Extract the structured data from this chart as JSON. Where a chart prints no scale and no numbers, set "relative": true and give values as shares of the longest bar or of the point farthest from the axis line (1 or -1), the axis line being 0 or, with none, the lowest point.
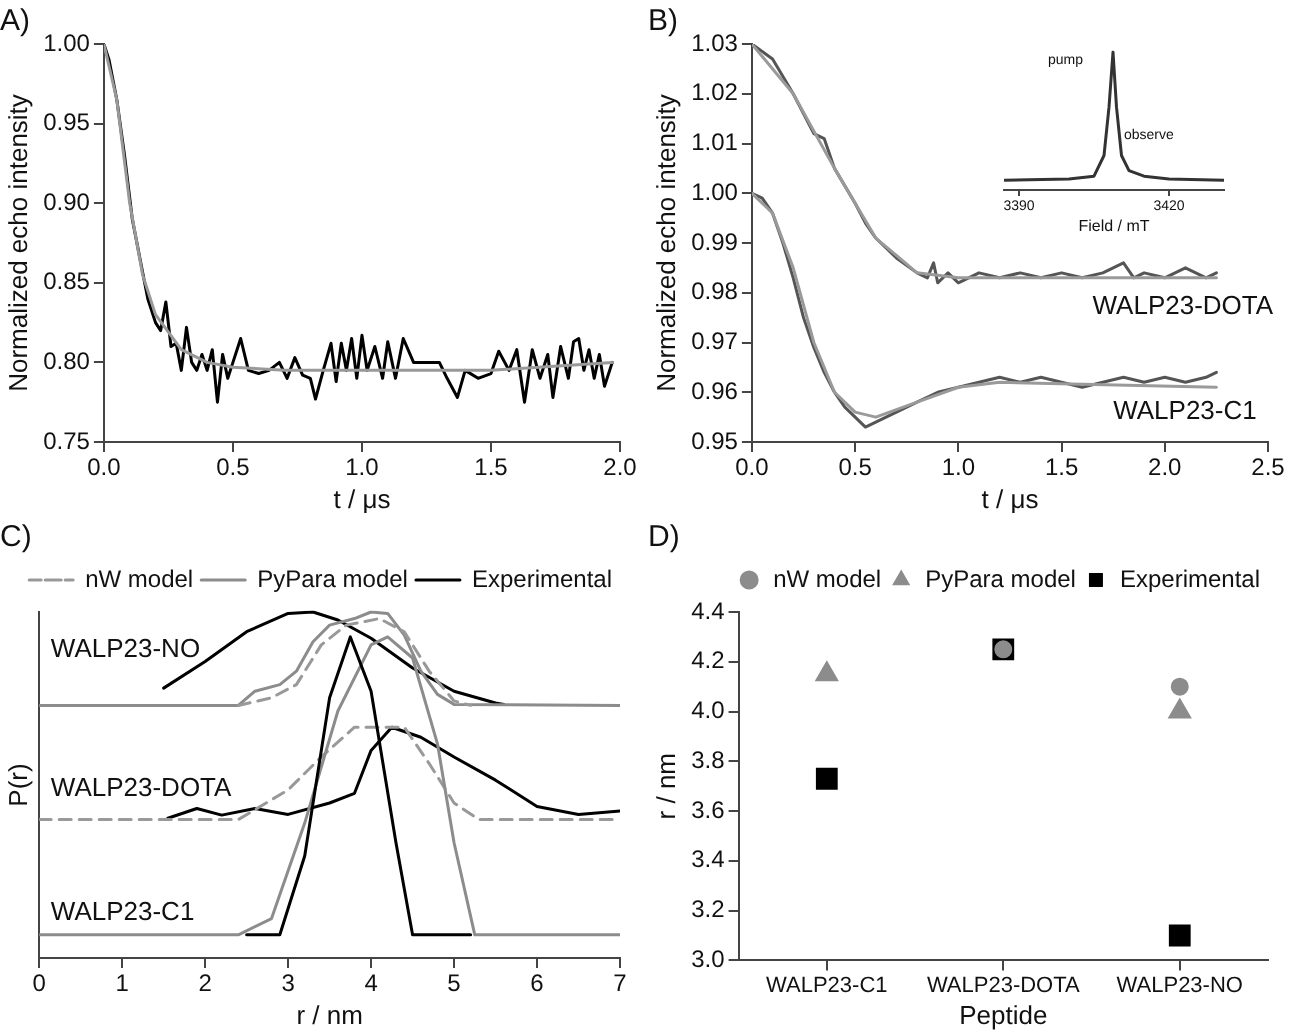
{
  "chart_data": [
    {
      "type": "line",
      "title": "A)",
      "xlabel": "t / μs",
      "ylabel": "Normalized echo intensity",
      "xlim": [
        0,
        2
      ],
      "ylim": [
        0.75,
        1.0
      ],
      "xticks": [
        {
          "value": 0,
          "label": "0.0"
        },
        0.5,
        {
          "value": 1,
          "label": "1.0"
        },
        1.5,
        {
          "value": 2,
          "label": "2.0"
        }
      ],
      "yticks": [
        0.75,
        {
          "value": 0.8,
          "label": "0.80"
        },
        0.85,
        {
          "value": 0.9,
          "label": "0.90"
        },
        0.95,
        {
          "value": 1,
          "label": "1.00"
        }
      ],
      "series": [
        {
          "color": "#000000",
          "x": [
            0,
            0.02,
            0.05,
            0.08,
            0.11,
            0.14,
            0.17,
            0.2,
            0.22,
            0.24,
            0.26,
            0.28,
            0.3,
            0.32,
            0.34,
            0.36,
            0.38,
            0.4,
            0.42,
            0.44,
            0.46,
            0.48,
            0.5,
            0.53,
            0.56,
            0.6,
            0.64,
            0.68,
            0.71,
            0.74,
            0.77,
            0.8,
            0.82,
            0.85,
            0.88,
            0.9,
            0.92,
            0.94,
            0.96,
            0.98,
            1.0,
            1.02,
            1.05,
            1.08,
            1.1,
            1.13,
            1.16,
            1.2,
            1.25,
            1.3,
            1.33,
            1.37,
            1.4,
            1.45,
            1.5,
            1.53,
            1.57,
            1.6,
            1.63,
            1.66,
            1.69,
            1.72,
            1.74,
            1.77,
            1.8,
            1.82,
            1.84,
            1.86,
            1.88,
            1.9,
            1.92,
            1.94,
            1.97
          ],
          "values": [
            1.0,
            0.99,
            0.965,
            0.93,
            0.89,
            0.865,
            0.84,
            0.825,
            0.82,
            0.838,
            0.81,
            0.812,
            0.795,
            0.822,
            0.8,
            0.795,
            0.805,
            0.795,
            0.808,
            0.775,
            0.805,
            0.79,
            0.8,
            0.815,
            0.795,
            0.793,
            0.795,
            0.8,
            0.79,
            0.803,
            0.792,
            0.79,
            0.777,
            0.795,
            0.812,
            0.788,
            0.812,
            0.795,
            0.815,
            0.79,
            0.817,
            0.795,
            0.81,
            0.79,
            0.813,
            0.79,
            0.815,
            0.8,
            0.8,
            0.8,
            0.79,
            0.778,
            0.795,
            0.79,
            0.793,
            0.807,
            0.795,
            0.808,
            0.775,
            0.808,
            0.79,
            0.805,
            0.778,
            0.81,
            0.79,
            0.813,
            0.815,
            0.795,
            0.808,
            0.79,
            0.805,
            0.785,
            0.8
          ]
        },
        {
          "color": "#999999",
          "x": [
            0,
            0.05,
            0.1,
            0.15,
            0.2,
            0.3,
            0.4,
            0.5,
            0.7,
            1.0,
            1.5,
            1.97
          ],
          "values": [
            1.0,
            0.965,
            0.9,
            0.855,
            0.83,
            0.808,
            0.8,
            0.797,
            0.795,
            0.795,
            0.795,
            0.8
          ]
        }
      ]
    },
    {
      "type": "line",
      "title": "B)",
      "xlabel": "t / μs",
      "ylabel": "Normalized echo intensity",
      "xlim": [
        0,
        2.5
      ],
      "ylim": [
        0.95,
        1.03
      ],
      "xticks": [
        {
          "value": 0,
          "label": "0.0"
        },
        0.5,
        {
          "value": 1,
          "label": "1.0"
        },
        1.5,
        {
          "value": 2,
          "label": "2.0"
        },
        2.5
      ],
      "yticks": [
        0.95,
        0.96,
        0.97,
        0.98,
        0.99,
        {
          "value": 1,
          "label": "1.00"
        },
        1.01,
        1.02,
        1.03
      ],
      "annotations": [
        "WALP23-DOTA",
        "WALP23-C1"
      ],
      "series": [
        {
          "color": "#555555",
          "x": [
            0,
            0.1,
            0.2,
            0.3,
            0.35,
            0.4,
            0.5,
            0.55,
            0.6,
            0.7,
            0.8,
            0.85,
            0.88,
            0.9,
            0.95,
            1.0,
            1.1,
            1.2,
            1.3,
            1.4,
            1.5,
            1.6,
            1.7,
            1.8,
            1.85,
            1.9,
            2.0,
            2.1,
            2.2,
            2.25
          ],
          "values": [
            1.03,
            1.027,
            1.02,
            1.012,
            1.011,
            1.005,
            0.998,
            0.994,
            0.991,
            0.987,
            0.984,
            0.983,
            0.986,
            0.982,
            0.984,
            0.982,
            0.984,
            0.983,
            0.984,
            0.983,
            0.984,
            0.983,
            0.984,
            0.986,
            0.983,
            0.984,
            0.983,
            0.985,
            0.983,
            0.984
          ]
        },
        {
          "color": "#9a9a9a",
          "x": [
            0,
            0.2,
            0.4,
            0.6,
            0.8,
            1.0,
            2.25
          ],
          "values": [
            1.03,
            1.02,
            1.005,
            0.991,
            0.984,
            0.983,
            0.983
          ]
        },
        {
          "color": "#555555",
          "x": [
            0,
            0.05,
            0.1,
            0.15,
            0.2,
            0.25,
            0.3,
            0.35,
            0.4,
            0.45,
            0.5,
            0.55,
            0.6,
            0.7,
            0.8,
            0.9,
            1.0,
            1.1,
            1.2,
            1.3,
            1.4,
            1.5,
            1.6,
            1.7,
            1.8,
            1.9,
            2.0,
            2.1,
            2.2,
            2.25
          ],
          "values": [
            1.0,
            0.999,
            0.996,
            0.99,
            0.983,
            0.975,
            0.969,
            0.964,
            0.96,
            0.957,
            0.955,
            0.953,
            0.954,
            0.956,
            0.958,
            0.96,
            0.961,
            0.962,
            0.963,
            0.962,
            0.963,
            0.962,
            0.961,
            0.962,
            0.963,
            0.962,
            0.963,
            0.962,
            0.963,
            0.964
          ]
        },
        {
          "color": "#9a9a9a",
          "x": [
            0,
            0.1,
            0.2,
            0.3,
            0.4,
            0.5,
            0.6,
            0.8,
            1.0,
            1.2,
            2.25
          ],
          "values": [
            1.0,
            0.996,
            0.985,
            0.97,
            0.96,
            0.956,
            0.955,
            0.958,
            0.961,
            0.962,
            0.961
          ]
        }
      ]
    },
    {
      "type": "line",
      "relative": true,
      "tick_labels": "x",
      "xlabel": "Field / mT",
      "xlim": [
        3387,
        3431
      ],
      "xticks": [
        3390,
        3420
      ],
      "annotations": [
        "pump",
        {
          "text": "observe",
          "x": 3411,
          "y": 0.4
        }
      ],
      "series": [
        {
          "color": "#333333",
          "x": [
            3387,
            3400,
            3405,
            3407,
            3408,
            3408.8,
            3409.5,
            3410.5,
            3412,
            3415,
            3420,
            3431
          ],
          "values": [
            0.07,
            0.08,
            0.1,
            0.25,
            0.6,
            1.0,
            0.6,
            0.25,
            0.14,
            0.1,
            0.08,
            0.07
          ]
        }
      ]
    },
    {
      "type": "line",
      "relative": true,
      "title": "C)",
      "xlabel": "r / nm",
      "ylabel": "P(r)",
      "xlim": [
        0,
        7
      ],
      "xticks": [
        0,
        1,
        2,
        3,
        4,
        5,
        6,
        7
      ],
      "legend": "top right",
      "annotations": [
        "WALP23-NO",
        "WALP23-DOTA",
        "WALP23-C1"
      ],
      "series": [
        {
          "name": "Experimental",
          "color": "#000000",
          "x": [
            1.5,
            2,
            2.5,
            3,
            3.3,
            3.6,
            4,
            4.5,
            5,
            5.5,
            5.6
          ],
          "values": [
            0.78,
            0.857,
            0.943,
            0.996,
            1.0,
            0.977,
            0.924,
            0.838,
            0.771,
            0.737,
            0.733
          ]
        },
        {
          "name": "PyPara model",
          "color": "#8c8c8c",
          "x": [
            0,
            2.4,
            2.6,
            2.9,
            3.1,
            3.3,
            3.5,
            3.8,
            4,
            4.2,
            4.4,
            4.6,
            4.8,
            5,
            7
          ],
          "values": [
            0.73,
            0.73,
            0.771,
            0.79,
            0.829,
            0.914,
            0.962,
            0.981,
            1.0,
            0.996,
            0.933,
            0.829,
            0.762,
            0.733,
            0.73
          ]
        },
        {
          "name": "nW model",
          "color": "#999999",
          "line_style": "dashed",
          "x": [
            2.4,
            2.8,
            3.1,
            3.4,
            3.7,
            4.1,
            4.4,
            4.7,
            5,
            5.2
          ],
          "values": [
            0.73,
            0.752,
            0.79,
            0.905,
            0.962,
            0.981,
            0.943,
            0.829,
            0.743,
            0.73
          ]
        },
        {
          "color": "#000000",
          "x": [
            1.55,
            1.9,
            2.2,
            2.6,
            3,
            3.5,
            3.8,
            4,
            4.25,
            4.6,
            5,
            5.5,
            6,
            6.5,
            7
          ],
          "values": [
            0.404,
            0.432,
            0.413,
            0.432,
            0.415,
            0.448,
            0.476,
            0.6,
            0.667,
            0.638,
            0.581,
            0.514,
            0.438,
            0.415,
            0.425
          ]
        },
        {
          "color": "#999999",
          "line_style": "dashed",
          "x": [
            0,
            2.4,
            3,
            3.4,
            3.8,
            4.4,
            4.7,
            5,
            5.3,
            7
          ],
          "values": [
            0.4,
            0.4,
            0.486,
            0.581,
            0.667,
            0.667,
            0.562,
            0.448,
            0.4,
            0.4
          ]
        },
        {
          "color": "#8c8c8c",
          "x": [
            0,
            2.4,
            2.8,
            3.2,
            3.6,
            4,
            4.2,
            4.5,
            4.8,
            5,
            5.25,
            7
          ],
          "values": [
            0.067,
            0.067,
            0.114,
            0.39,
            0.714,
            0.905,
            0.928,
            0.867,
            0.619,
            0.333,
            0.067,
            0.067
          ]
        },
        {
          "color": "#000000",
          "x": [
            2.5,
            2.9,
            3.2,
            3.5,
            3.75,
            4,
            4.3,
            4.5,
            5.2
          ],
          "values": [
            0.067,
            0.067,
            0.295,
            0.752,
            0.928,
            0.771,
            0.333,
            0.067,
            0.067
          ]
        }
      ]
    },
    {
      "type": "scatter",
      "title": "D)",
      "xlabel": "Peptide",
      "ylabel": "r / nm",
      "categories": [
        "WALP23-C1",
        "WALP23-DOTA",
        "WALP23-NO"
      ],
      "ylim": [
        3.0,
        4.4
      ],
      "yticks": [
        {
          "value": 3,
          "label": "3.0"
        },
        3.2,
        3.4,
        3.6,
        3.8,
        {
          "value": 4,
          "label": "4.0"
        },
        4.2,
        4.4
      ],
      "legend": "top right",
      "series": [
        {
          "name": "Experimental",
          "color": "#000000",
          "marker": "square",
          "values": [
            3.73,
            4.25,
            3.1
          ]
        },
        {
          "name": "PyPara model",
          "color": "#8c8c8c",
          "marker": "triangle",
          "values": [
            4.15,
            null,
            4.0
          ]
        },
        {
          "name": "nW model",
          "color": "#8c8c8c",
          "marker": "circle",
          "values": [
            null,
            4.25,
            4.1
          ]
        }
      ]
    }
  ]
}
